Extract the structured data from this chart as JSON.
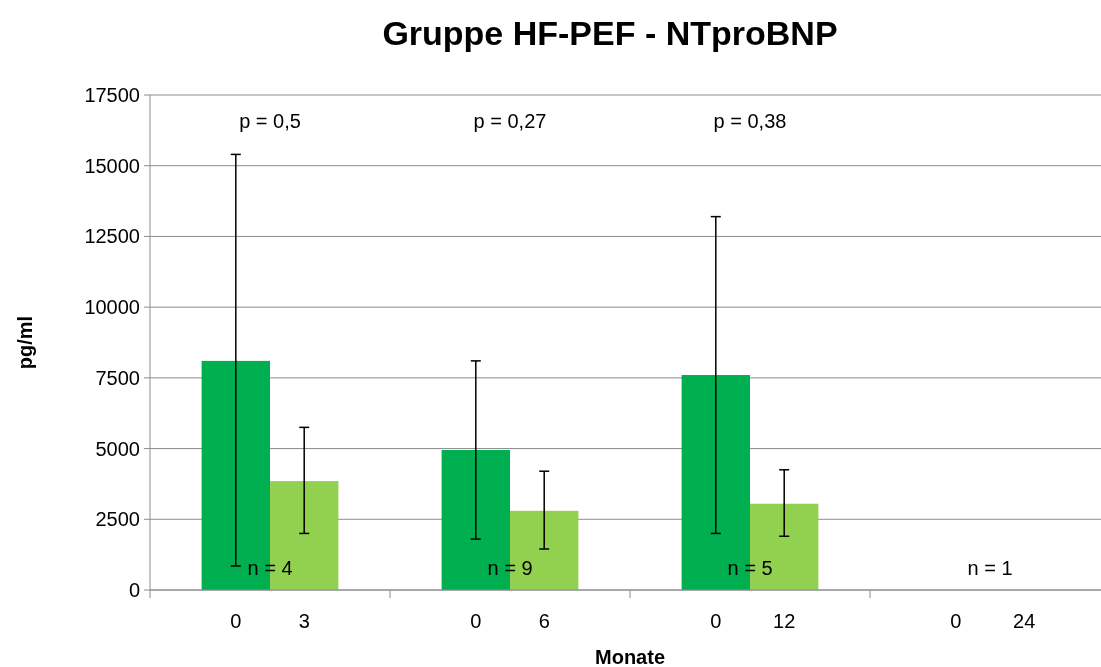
{
  "chart_data": {
    "type": "bar",
    "title": "Gruppe HF-PEF - NTproBNP",
    "xlabel": "Monate",
    "ylabel": "pg/ml",
    "categories": [
      "0",
      "3",
      "0",
      "6",
      "0",
      "12",
      "0",
      "24"
    ],
    "values": [
      8100,
      3850,
      4950,
      2800,
      7600,
      3050,
      null,
      null
    ],
    "colors": [
      "#00b050",
      "#92d050",
      "#00b050",
      "#92d050",
      "#00b050",
      "#92d050",
      null,
      null
    ],
    "errors": [
      [
        850,
        15400
      ],
      [
        2000,
        5750
      ],
      [
        1800,
        8100
      ],
      [
        1450,
        4200
      ],
      [
        2000,
        13200
      ],
      [
        1900,
        4250
      ],
      null,
      null
    ],
    "ylim": [
      0,
      17500
    ],
    "yticks": [
      0,
      2500,
      5000,
      7500,
      10000,
      12500,
      15000,
      17500
    ],
    "grid": "y",
    "annotations": [
      "p = 0,5",
      "p = 0,27",
      "p = 0,38",
      "n = 4",
      "n = 9",
      "n = 5",
      "n = 1"
    ]
  }
}
